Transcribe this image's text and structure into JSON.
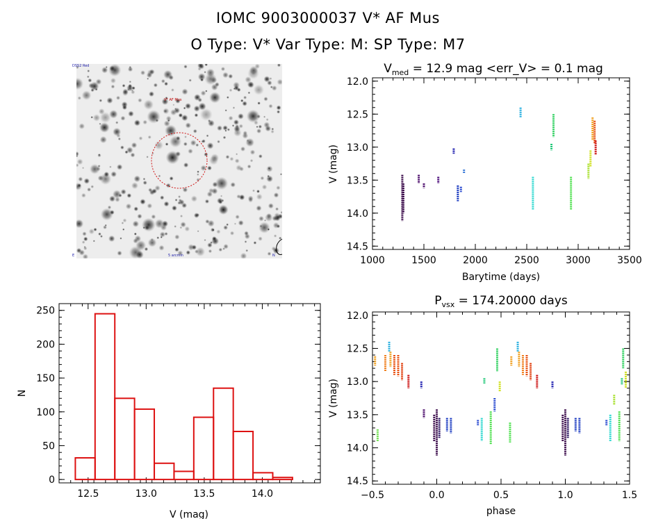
{
  "header": {
    "title": "IOMC 9003000037    V* AF Mus",
    "subtitle": "O Type: V*   Var Type: M:   SP Type: M7"
  },
  "sky_image": {
    "star_label": "V* AF Mus",
    "label_top_left": "DSS2 Red",
    "label_bottom": "5 arcmin",
    "label_bottom_left": "E",
    "label_bottom_right": "N"
  },
  "chart_data": [
    {
      "id": "light-curve",
      "type": "scatter",
      "title": "V_med = 12.9 mag <err_V> = 0.1 mag",
      "title_parts": {
        "symbol": "V",
        "subscript": "med",
        "rest": " = 12.9 mag <err_V> = 0.1 mag"
      },
      "xlabel": "Barytime (days)",
      "ylabel": "V (mag)",
      "xlim": [
        1000,
        3500
      ],
      "ylim": [
        14.55,
        11.95
      ],
      "xticks": [
        1000,
        1500,
        2000,
        2500,
        3000,
        3500
      ],
      "yticks": [
        12.0,
        12.5,
        13.0,
        13.5,
        14.0,
        14.5
      ],
      "tick_labels_x": [
        "1000",
        "1500",
        "2000",
        "2500",
        "3000",
        "3500"
      ],
      "tick_labels_y": [
        "12.0",
        "12.5",
        "13.0",
        "13.5",
        "14.0",
        "14.5"
      ],
      "groups": [
        {
          "t": 1290,
          "v0": 13.42,
          "v1": 14.12,
          "color": "#3a0a4a"
        },
        {
          "t": 1300,
          "v0": 13.55,
          "v1": 14.0,
          "color": "#3a0a4a"
        },
        {
          "t": 1450,
          "v0": 13.42,
          "v1": 13.55,
          "color": "#4a0a6a"
        },
        {
          "t": 1500,
          "v0": 13.55,
          "v1": 13.62,
          "color": "#4a0a6a"
        },
        {
          "t": 1640,
          "v0": 13.45,
          "v1": 13.55,
          "color": "#4a0a7a"
        },
        {
          "t": 1790,
          "v0": 13.02,
          "v1": 13.1,
          "color": "#2020b0"
        },
        {
          "t": 1830,
          "v0": 13.58,
          "v1": 13.82,
          "color": "#1a3ac0"
        },
        {
          "t": 1860,
          "v0": 13.6,
          "v1": 13.68,
          "color": "#2a4ad0"
        },
        {
          "t": 1890,
          "v0": 13.34,
          "v1": 13.4,
          "color": "#3a7ad8"
        },
        {
          "t": 2440,
          "v0": 12.4,
          "v1": 12.55,
          "color": "#2ab0e0"
        },
        {
          "t": 2560,
          "v0": 13.45,
          "v1": 13.95,
          "color": "#30d8d0"
        },
        {
          "t": 2740,
          "v0": 12.95,
          "v1": 13.05,
          "color": "#20c878"
        },
        {
          "t": 2760,
          "v0": 12.5,
          "v1": 12.85,
          "color": "#30d060"
        },
        {
          "t": 2930,
          "v0": 13.45,
          "v1": 13.95,
          "color": "#50e050"
        },
        {
          "t": 3100,
          "v0": 13.25,
          "v1": 13.48,
          "color": "#a8e030"
        },
        {
          "t": 3120,
          "v0": 13.05,
          "v1": 13.3,
          "color": "#d0e020"
        },
        {
          "t": 3140,
          "v0": 12.55,
          "v1": 12.9,
          "color": "#f0a020"
        },
        {
          "t": 3160,
          "v0": 12.6,
          "v1": 12.95,
          "color": "#e85010"
        },
        {
          "t": 3170,
          "v0": 12.9,
          "v1": 13.12,
          "color": "#cc1010"
        }
      ]
    },
    {
      "id": "histogram",
      "type": "bar",
      "title": "",
      "xlabel": "V (mag)",
      "ylabel": "N",
      "xlim": [
        12.25,
        14.5
      ],
      "ylim": [
        -5,
        260
      ],
      "xticks": [
        12.5,
        13.0,
        13.5,
        14.0
      ],
      "yticks": [
        0,
        50,
        100,
        150,
        200,
        250
      ],
      "tick_labels_x": [
        "12.5",
        "13.0",
        "13.5",
        "14.0"
      ],
      "tick_labels_y": [
        "0",
        "50",
        "100",
        "150",
        "200",
        "250"
      ],
      "bin_edges": [
        12.39,
        12.56,
        12.73,
        12.9,
        13.07,
        13.24,
        13.41,
        13.58,
        13.75,
        13.92,
        14.09,
        14.26
      ],
      "values": [
        32,
        245,
        120,
        104,
        24,
        12,
        92,
        135,
        71,
        10,
        3
      ],
      "color": "#dd1111"
    },
    {
      "id": "phased-curve",
      "type": "scatter",
      "title": "P_vsx = 174.20000 days",
      "title_parts": {
        "symbol": "P",
        "subscript": "vsx",
        "rest": " = 174.20000 days"
      },
      "xlabel": "phase",
      "ylabel": "V (mag)",
      "xlim": [
        -0.5,
        1.5
      ],
      "ylim": [
        14.55,
        11.95
      ],
      "xticks": [
        -0.5,
        0.0,
        0.5,
        1.0,
        1.5
      ],
      "yticks": [
        12.0,
        12.5,
        13.0,
        13.5,
        14.0,
        14.5
      ],
      "tick_labels_x": [
        "−0.5",
        "0.0",
        "0.5",
        "1.0",
        "1.5"
      ],
      "tick_labels_y": [
        "12.0",
        "12.5",
        "13.0",
        "13.5",
        "14.0",
        "14.5"
      ],
      "groups": [
        {
          "phase": 0.0,
          "v0": 13.42,
          "v1": 14.12,
          "color": "#3a0a4a"
        },
        {
          "phase": -0.02,
          "v0": 13.5,
          "v1": 13.9,
          "color": "#3a0a4a"
        },
        {
          "phase": 0.02,
          "v0": 13.55,
          "v1": 13.85,
          "color": "#2a1060"
        },
        {
          "phase": 0.08,
          "v0": 13.55,
          "v1": 13.75,
          "color": "#1a3ac0"
        },
        {
          "phase": 0.11,
          "v0": 13.55,
          "v1": 13.78,
          "color": "#1a3ac0"
        },
        {
          "phase": -0.1,
          "v0": 13.42,
          "v1": 13.55,
          "color": "#4a0a6a"
        },
        {
          "phase": -0.12,
          "v0": 13.0,
          "v1": 13.1,
          "color": "#2020b0"
        },
        {
          "phase": 0.32,
          "v0": 13.58,
          "v1": 13.66,
          "color": "#2a4ad0"
        },
        {
          "phase": 0.35,
          "v0": 13.55,
          "v1": 13.9,
          "color": "#30d8d0"
        },
        {
          "phase": 0.37,
          "v0": 12.95,
          "v1": 13.03,
          "color": "#20c878"
        },
        {
          "phase": 0.42,
          "v0": 13.45,
          "v1": 13.95,
          "color": "#50e050"
        },
        {
          "phase": 0.45,
          "v0": 13.25,
          "v1": 13.45,
          "color": "#2a4ad0"
        },
        {
          "phase": 0.47,
          "v0": 12.5,
          "v1": 12.85,
          "color": "#30d060"
        },
        {
          "phase": 0.49,
          "v0": 13.0,
          "v1": 13.15,
          "color": "#d0e020"
        },
        {
          "phase": 0.57,
          "v0": 13.62,
          "v1": 13.92,
          "color": "#50e050"
        },
        {
          "phase": 0.58,
          "v0": 12.62,
          "v1": 12.76,
          "color": "#f0a020"
        },
        {
          "phase": 0.63,
          "v0": 12.4,
          "v1": 12.55,
          "color": "#2ab0e0"
        },
        {
          "phase": 0.64,
          "v0": 12.55,
          "v1": 12.78,
          "color": "#f0a020"
        },
        {
          "phase": 0.67,
          "v0": 12.6,
          "v1": 12.9,
          "color": "#f08020"
        },
        {
          "phase": 0.7,
          "v0": 12.6,
          "v1": 12.92,
          "color": "#e85010"
        },
        {
          "phase": 0.73,
          "v0": 12.72,
          "v1": 12.98,
          "color": "#e04010"
        },
        {
          "phase": 0.78,
          "v0": 12.9,
          "v1": 13.1,
          "color": "#cc1010"
        },
        {
          "phase": 0.9,
          "v0": 13.0,
          "v1": 13.1,
          "color": "#2020b0"
        },
        {
          "phase": -0.48,
          "v0": 12.62,
          "v1": 12.76,
          "color": "#f0a020"
        },
        {
          "phase": -0.4,
          "v0": 12.6,
          "v1": 12.85,
          "color": "#f08020"
        },
        {
          "phase": -0.37,
          "v0": 12.4,
          "v1": 12.55,
          "color": "#2ab0e0"
        },
        {
          "phase": -0.36,
          "v0": 12.55,
          "v1": 12.78,
          "color": "#f0a020"
        },
        {
          "phase": -0.33,
          "v0": 12.6,
          "v1": 12.9,
          "color": "#e85010"
        },
        {
          "phase": -0.3,
          "v0": 12.6,
          "v1": 12.92,
          "color": "#e85010"
        },
        {
          "phase": -0.27,
          "v0": 12.72,
          "v1": 12.98,
          "color": "#e04010"
        },
        {
          "phase": -0.22,
          "v0": 12.9,
          "v1": 13.1,
          "color": "#cc1010"
        },
        {
          "phase": -0.46,
          "v0": 13.72,
          "v1": 13.9,
          "color": "#70e050"
        },
        {
          "phase": 1.0,
          "v0": 13.42,
          "v1": 14.12,
          "color": "#3a0a4a"
        },
        {
          "phase": 0.98,
          "v0": 13.5,
          "v1": 13.9,
          "color": "#3a0a4a"
        },
        {
          "phase": 1.02,
          "v0": 13.55,
          "v1": 13.85,
          "color": "#2a1060"
        },
        {
          "phase": 1.08,
          "v0": 13.55,
          "v1": 13.75,
          "color": "#1a3ac0"
        },
        {
          "phase": 1.11,
          "v0": 13.55,
          "v1": 13.78,
          "color": "#1a3ac0"
        },
        {
          "phase": 1.32,
          "v0": 13.58,
          "v1": 13.66,
          "color": "#2a4ad0"
        },
        {
          "phase": 1.35,
          "v0": 13.5,
          "v1": 13.9,
          "color": "#30d8d0"
        },
        {
          "phase": 1.38,
          "v0": 13.2,
          "v1": 13.35,
          "color": "#a8e030"
        },
        {
          "phase": 1.42,
          "v0": 13.45,
          "v1": 13.9,
          "color": "#50e050"
        },
        {
          "phase": 1.45,
          "v0": 12.5,
          "v1": 12.8,
          "color": "#30d060"
        },
        {
          "phase": 1.47,
          "v0": 12.85,
          "v1": 13.1,
          "color": "#d0e020"
        },
        {
          "phase": 1.44,
          "v0": 12.95,
          "v1": 13.05,
          "color": "#20c878"
        }
      ]
    }
  ]
}
